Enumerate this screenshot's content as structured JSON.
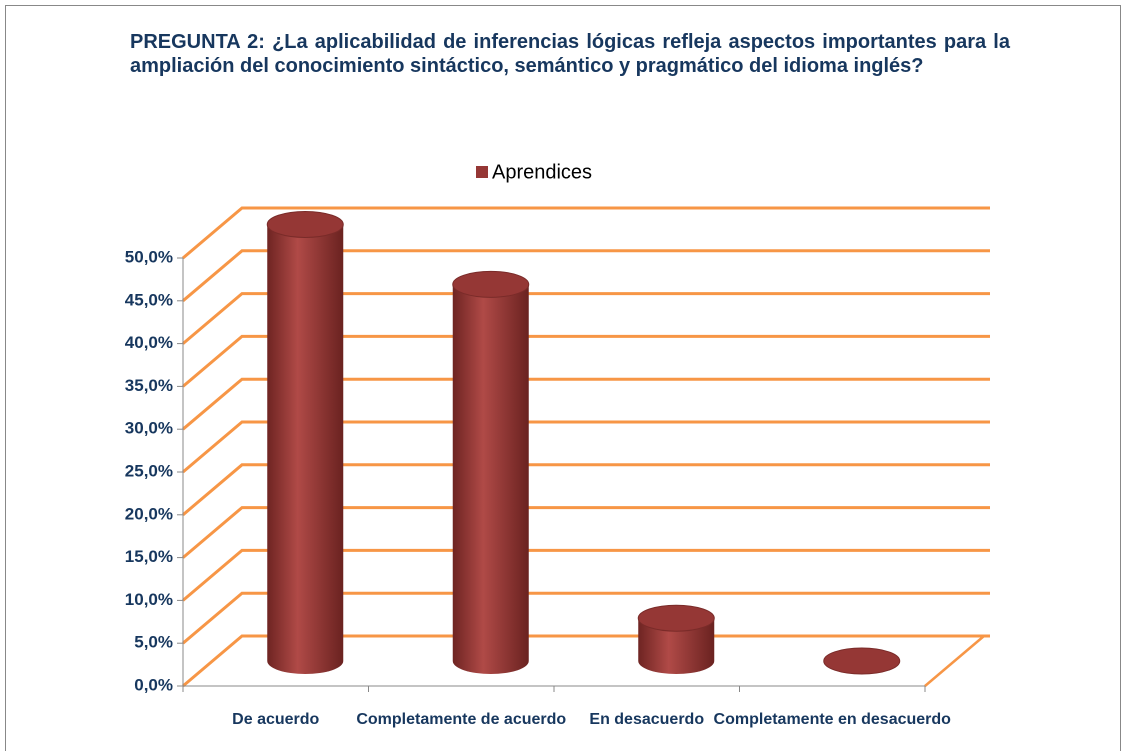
{
  "chart_data": {
    "type": "bar",
    "title": "PREGUNTA 2: ¿La aplicabilidad de inferencias lógicas refleja aspectos importantes para la ampliación del conocimiento sintáctico, semántico y pragmático del idioma inglés?",
    "categories": [
      "De acuerdo",
      "Completamente de acuerdo",
      "En desacuerdo",
      "Completamente en desacuerdo"
    ],
    "series": [
      {
        "name": "Aprendices",
        "color": "#953735",
        "values": [
          51,
          44,
          5,
          0
        ]
      }
    ],
    "ylim": [
      0,
      50
    ],
    "yticks": [
      {
        "value": 0,
        "label": "0,0%"
      },
      {
        "value": 5,
        "label": "5,0%"
      },
      {
        "value": 10,
        "label": "10,0%"
      },
      {
        "value": 15,
        "label": "15,0%"
      },
      {
        "value": 20,
        "label": "20,0%"
      },
      {
        "value": 25,
        "label": "25,0%"
      },
      {
        "value": 30,
        "label": "30,0%"
      },
      {
        "value": 35,
        "label": "35,0%"
      },
      {
        "value": 40,
        "label": "40,0%"
      },
      {
        "value": 45,
        "label": "45,0%"
      },
      {
        "value": 50,
        "label": "50,0%"
      }
    ],
    "grid": true
  }
}
